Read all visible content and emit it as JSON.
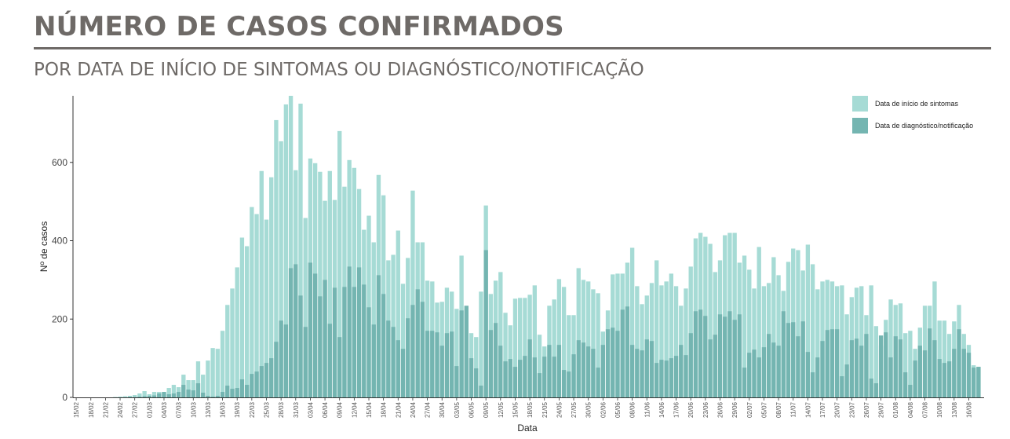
{
  "header": {
    "title": "NÚMERO DE CASOS CONFIRMADOS",
    "subtitle": "POR DATA DE INÍCIO DE SINTOMAS OU DIAGNÓSTICO/NOTIFICAÇÃO"
  },
  "chart_data": {
    "type": "bar",
    "stacked": "overlay",
    "xlabel": "Data",
    "ylabel": "Nº de casos",
    "ylim": [
      0,
      770
    ],
    "yticks": [
      0,
      200,
      400,
      600
    ],
    "grid": false,
    "legend_position": "top-right",
    "x_start": "2020-02-15",
    "x_end": "2020-08-14",
    "x_tick_every_days": 3,
    "series": [
      {
        "name": "Data de início de sintomas",
        "color": "#a6dbd5",
        "values": [
          0,
          0,
          0,
          0,
          0,
          0,
          0,
          0,
          1,
          2,
          3,
          4,
          6,
          10,
          16,
          8,
          14,
          14,
          12,
          24,
          32,
          26,
          58,
          44,
          44,
          92,
          58,
          94,
          126,
          124,
          170,
          236,
          278,
          332,
          408,
          386,
          486,
          468,
          578,
          454,
          562,
          708,
          654,
          748,
          770,
          580,
          750,
          458,
          610,
          598,
          576,
          502,
          578,
          504,
          680,
          538,
          606,
          586,
          532,
          428,
          464,
          396,
          568,
          516,
          350,
          364,
          426,
          290,
          356,
          528,
          396,
          396,
          298,
          296,
          242,
          244,
          280,
          270,
          226,
          362,
          224,
          164,
          154,
          270,
          490,
          264,
          298,
          320,
          216,
          184,
          252,
          254,
          254,
          262,
          286,
          160,
          130,
          234,
          250,
          302,
          282,
          210,
          210,
          330,
          300,
          296,
          276,
          266,
          168,
          222,
          314,
          316,
          316,
          344,
          382,
          284,
          238,
          260,
          292,
          350,
          286,
          296,
          316,
          284,
          234,
          278,
          334,
          406,
          420,
          410,
          392,
          320,
          350,
          414,
          420,
          420,
          344,
          362,
          326,
          278,
          384,
          284,
          292,
          358,
          312,
          272,
          346,
          380,
          376,
          324,
          390,
          340,
          276,
          296,
          300,
          296,
          284,
          286,
          212,
          256,
          280,
          284,
          210,
          286,
          182,
          132,
          198,
          250,
          236,
          240,
          164,
          170,
          124,
          178,
          234,
          234,
          296,
          196,
          196,
          162,
          194,
          236,
          162,
          134,
          82,
          78
        ],
        "emphasized": ""
      },
      {
        "name": "Data de diagnóstico/notificação",
        "color": "#74b5b1",
        "values": [
          0,
          0,
          0,
          0,
          0,
          0,
          0,
          0,
          0,
          0,
          0,
          1,
          1,
          2,
          3,
          4,
          5,
          10,
          14,
          8,
          10,
          14,
          32,
          20,
          18,
          36,
          12,
          4,
          2,
          4,
          14,
          30,
          22,
          24,
          46,
          32,
          60,
          66,
          80,
          88,
          100,
          142,
          196,
          186,
          330,
          340,
          260,
          180,
          344,
          316,
          258,
          300,
          188,
          280,
          154,
          282,
          334,
          282,
          332,
          288,
          230,
          186,
          312,
          264,
          196,
          180,
          146,
          124,
          202,
          236,
          276,
          244,
          170,
          170,
          166,
          132,
          164,
          168,
          80,
          222,
          234,
          100,
          74,
          30,
          376,
          172,
          190,
          132,
          92,
          98,
          78,
          96,
          106,
          148,
          102,
          62,
          104,
          134,
          104,
          134,
          70,
          66,
          110,
          146,
          140,
          130,
          124,
          76,
          134,
          174,
          178,
          170,
          224,
          232,
          134,
          124,
          120,
          148,
          144,
          88,
          96,
          94,
          100,
          106,
          134,
          108,
          164,
          220,
          224,
          208,
          148,
          160,
          212,
          206,
          220,
          198,
          212,
          76,
          114,
          122,
          102,
          128,
          162,
          140,
          132,
          220,
          190,
          192,
          156,
          194,
          116,
          64,
          102,
          144,
          172,
          174,
          174,
          54,
          84,
          146,
          150,
          132,
          162,
          48,
          36,
          158,
          166,
          102,
          156,
          148,
          64,
          32,
          94,
          132,
          120,
          176,
          146,
          98,
          88,
          92,
          124,
          174,
          124,
          114,
          76,
          78
        ],
        "emphasized": ""
      }
    ]
  }
}
